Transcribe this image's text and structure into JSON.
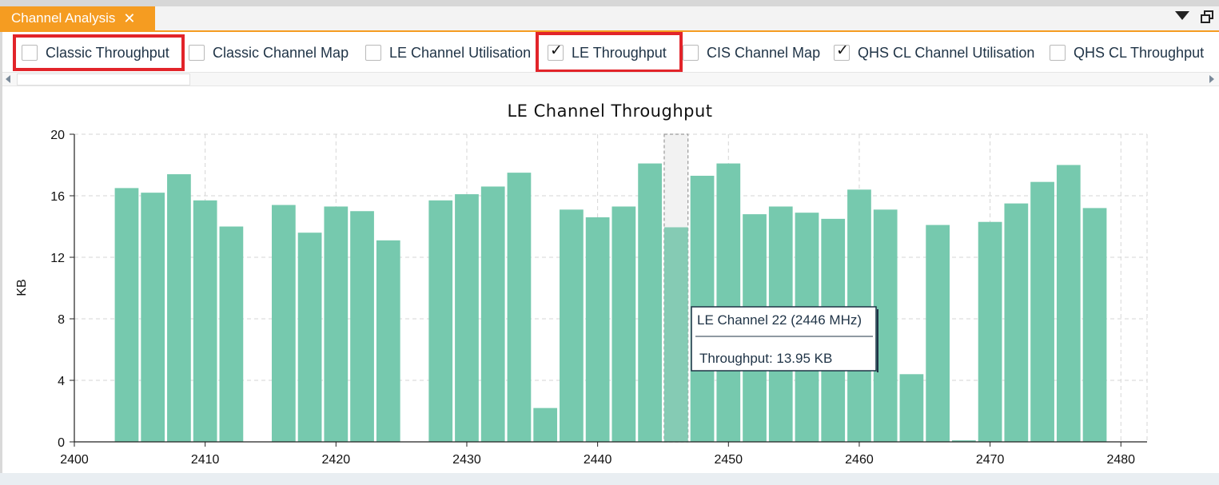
{
  "tab": {
    "title": "Channel Analysis",
    "close_glyph": "✕"
  },
  "options": [
    {
      "label": "Classic Throughput",
      "checked": false
    },
    {
      "label": "Classic Channel Map",
      "checked": false
    },
    {
      "label": "LE Channel Utilisation",
      "checked": false
    },
    {
      "label": "LE Throughput",
      "checked": true
    },
    {
      "label": "CIS Channel Map",
      "checked": false
    },
    {
      "label": "QHS CL Channel Utilisation",
      "checked": true
    },
    {
      "label": "QHS CL Throughput",
      "checked": false
    }
  ],
  "checkmark_glyph": "✓",
  "colors": {
    "tab_accent": "#f59c21",
    "bar": "#76c9ae",
    "highlight": "#e2242a",
    "hover_bar": "#85cbb4"
  },
  "chart_data": {
    "type": "bar",
    "title": "LE Channel Throughput",
    "xlabel": "",
    "ylabel": "KB",
    "xlim": [
      2400,
      2482
    ],
    "ylim": [
      0,
      20
    ],
    "xticks": [
      2400,
      2410,
      2420,
      2430,
      2440,
      2450,
      2460,
      2470,
      2480
    ],
    "yticks": [
      0,
      4,
      8,
      12,
      16,
      20
    ],
    "grid": true,
    "x": [
      2404,
      2406,
      2408,
      2410,
      2412,
      2416,
      2418,
      2420,
      2422,
      2424,
      2428,
      2430,
      2432,
      2434,
      2436,
      2438,
      2440,
      2442,
      2444,
      2446,
      2448,
      2450,
      2452,
      2454,
      2456,
      2458,
      2460,
      2462,
      2464,
      2466,
      2468,
      2470,
      2472,
      2474,
      2476,
      2478
    ],
    "values": [
      16.5,
      16.2,
      17.4,
      15.7,
      14.0,
      15.4,
      13.6,
      15.3,
      15.0,
      13.1,
      15.7,
      16.1,
      16.6,
      17.5,
      2.2,
      15.1,
      14.6,
      15.3,
      18.1,
      13.95,
      17.3,
      18.1,
      14.8,
      15.3,
      14.9,
      14.5,
      16.4,
      15.1,
      4.4,
      14.1,
      0.1,
      14.3,
      15.5,
      16.9,
      18.0,
      15.2
    ],
    "hover_channel_x": 2446,
    "tooltip": {
      "title": "LE Channel 22 (2446 MHz)",
      "body": "Throughput: 13.95 KB"
    }
  }
}
